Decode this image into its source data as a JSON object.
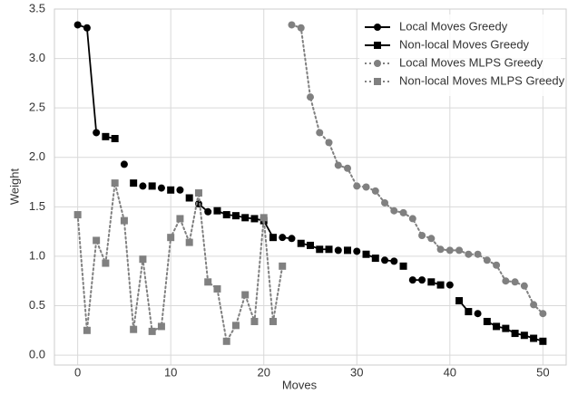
{
  "chart_data": {
    "type": "line",
    "xlabel": "Moves",
    "ylabel": "Weight",
    "xlim": [
      -2.5,
      52.5
    ],
    "ylim": [
      -0.1,
      3.5
    ],
    "xticks": [
      0,
      10,
      20,
      30,
      40,
      50
    ],
    "yticks": [
      {
        "value": 0,
        "label": "0.0"
      },
      0.5,
      {
        "value": 1,
        "label": "1.0"
      },
      1.5,
      {
        "value": 2,
        "label": "2.0"
      },
      2.5,
      {
        "value": 3,
        "label": "3.0"
      },
      3.5
    ],
    "grid": true,
    "legend": "upper right",
    "series": [
      {
        "name": "Local Moves Greedy",
        "color": "#000000",
        "marker": "circle",
        "linestyle": "solid",
        "x": [
          0,
          1,
          2,
          5,
          7,
          9,
          11,
          13,
          14,
          22,
          23,
          28,
          30,
          33,
          34,
          36,
          37,
          40,
          43
        ],
        "values": [
          3.34,
          3.31,
          2.25,
          1.93,
          1.71,
          1.69,
          1.67,
          1.53,
          1.45,
          1.19,
          1.18,
          1.06,
          1.05,
          0.96,
          0.95,
          0.76,
          0.76,
          0.71,
          0.42
        ]
      },
      {
        "name": "Non-local Moves Greedy",
        "color": "#000000",
        "marker": "square",
        "linestyle": "solid",
        "x": [
          3,
          4,
          6,
          8,
          10,
          12,
          15,
          16,
          17,
          18,
          19,
          20,
          21,
          24,
          25,
          26,
          27,
          29,
          31,
          32,
          35,
          38,
          39,
          41,
          42,
          44,
          45,
          46,
          47,
          48,
          49,
          50
        ],
        "values": [
          2.21,
          2.19,
          1.74,
          1.71,
          1.67,
          1.59,
          1.46,
          1.42,
          1.41,
          1.39,
          1.38,
          1.36,
          1.19,
          1.13,
          1.11,
          1.07,
          1.07,
          1.06,
          1.02,
          0.98,
          0.9,
          0.74,
          0.71,
          0.55,
          0.44,
          0.34,
          0.29,
          0.27,
          0.22,
          0.2,
          0.17,
          0.14
        ]
      },
      {
        "name": "Local Moves MLPS Greedy",
        "color": "#808080",
        "marker": "circle",
        "linestyle": "dotted",
        "x": [
          23,
          24,
          25,
          26,
          27,
          28,
          29,
          30,
          31,
          32,
          33,
          34,
          35,
          36,
          37,
          38,
          39,
          40,
          41,
          42,
          43,
          44,
          45,
          46,
          47,
          48,
          49,
          50
        ],
        "values": [
          3.34,
          3.31,
          2.61,
          2.25,
          2.15,
          1.92,
          1.89,
          1.71,
          1.7,
          1.66,
          1.54,
          1.46,
          1.44,
          1.38,
          1.21,
          1.18,
          1.07,
          1.06,
          1.06,
          1.02,
          1.02,
          0.96,
          0.91,
          0.75,
          0.74,
          0.7,
          0.51,
          0.42
        ]
      },
      {
        "name": "Non-local Moves MLPS Greedy",
        "color": "#808080",
        "marker": "square",
        "linestyle": "dotted",
        "x": [
          0,
          1,
          2,
          3,
          4,
          5,
          6,
          7,
          8,
          9,
          10,
          11,
          12,
          13,
          14,
          15,
          16,
          17,
          18,
          19,
          20,
          21,
          22
        ],
        "values": [
          1.42,
          0.25,
          1.16,
          0.93,
          1.74,
          1.36,
          0.26,
          0.97,
          0.24,
          0.29,
          1.19,
          1.38,
          1.14,
          1.64,
          0.74,
          0.67,
          0.14,
          0.3,
          0.61,
          0.34,
          1.39,
          0.34,
          0.9
        ]
      }
    ]
  }
}
